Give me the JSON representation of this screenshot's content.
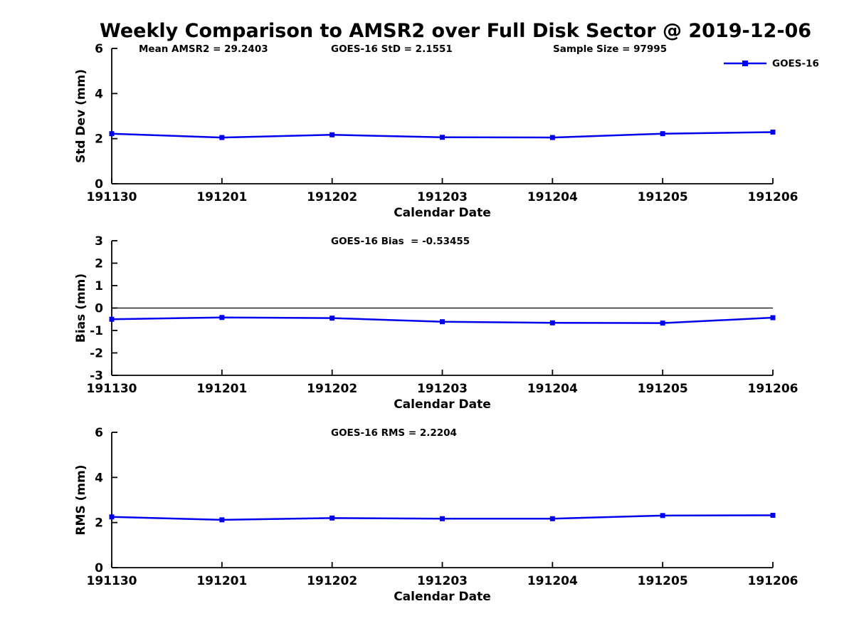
{
  "figure": {
    "title": "Weekly Comparison to AMSR2 over Full Disk Sector @ 2019-12-06",
    "background": "#ffffff"
  },
  "colors": {
    "series": "#0000ee",
    "axis": "#000000",
    "zero_line": "#000000",
    "text": "#000000"
  },
  "legend": {
    "label": "GOES-16",
    "position": "top-right",
    "marker": "square"
  },
  "chart_data": [
    {
      "type": "line",
      "id": "stddev",
      "annotations": [
        "Mean AMSR2 = 29.2403",
        "GOES-16 StD = 2.1551",
        "Sample Size = 97995"
      ],
      "categories": [
        "191130",
        "191201",
        "191202",
        "191203",
        "191204",
        "191205",
        "191206"
      ],
      "series": [
        {
          "name": "GOES-16",
          "marker": "square",
          "values": [
            2.22,
            2.05,
            2.17,
            2.06,
            2.05,
            2.22,
            2.29
          ]
        }
      ],
      "xlabel": "Calendar Date",
      "ylabel": "Std Dev (mm)",
      "ylim": [
        0,
        6
      ],
      "yticks": [
        0,
        2,
        4,
        6
      ],
      "zero_line": false,
      "grid": false,
      "legend": true
    },
    {
      "type": "line",
      "id": "bias",
      "annotations": [
        "GOES-16 Bias  = -0.53455"
      ],
      "categories": [
        "191130",
        "191201",
        "191202",
        "191203",
        "191204",
        "191205",
        "191206"
      ],
      "series": [
        {
          "name": "GOES-16",
          "marker": "square",
          "values": [
            -0.5,
            -0.42,
            -0.45,
            -0.61,
            -0.66,
            -0.67,
            -0.43
          ]
        }
      ],
      "xlabel": "Calendar Date",
      "ylabel": "Bias (mm)",
      "ylim": [
        -3,
        3
      ],
      "yticks": [
        -3,
        -2,
        -1,
        0,
        1,
        2,
        3
      ],
      "zero_line": true,
      "grid": false,
      "legend": false
    },
    {
      "type": "line",
      "id": "rms",
      "annotations": [
        "GOES-16 RMS = 2.2204"
      ],
      "categories": [
        "191130",
        "191201",
        "191202",
        "191203",
        "191204",
        "191205",
        "191206"
      ],
      "series": [
        {
          "name": "GOES-16",
          "marker": "square",
          "values": [
            2.25,
            2.12,
            2.2,
            2.17,
            2.17,
            2.31,
            2.32
          ]
        }
      ],
      "xlabel": "Calendar Date",
      "ylabel": "RMS (mm)",
      "ylim": [
        0,
        6
      ],
      "yticks": [
        0,
        2,
        4,
        6
      ],
      "zero_line": false,
      "grid": false,
      "legend": false
    }
  ]
}
